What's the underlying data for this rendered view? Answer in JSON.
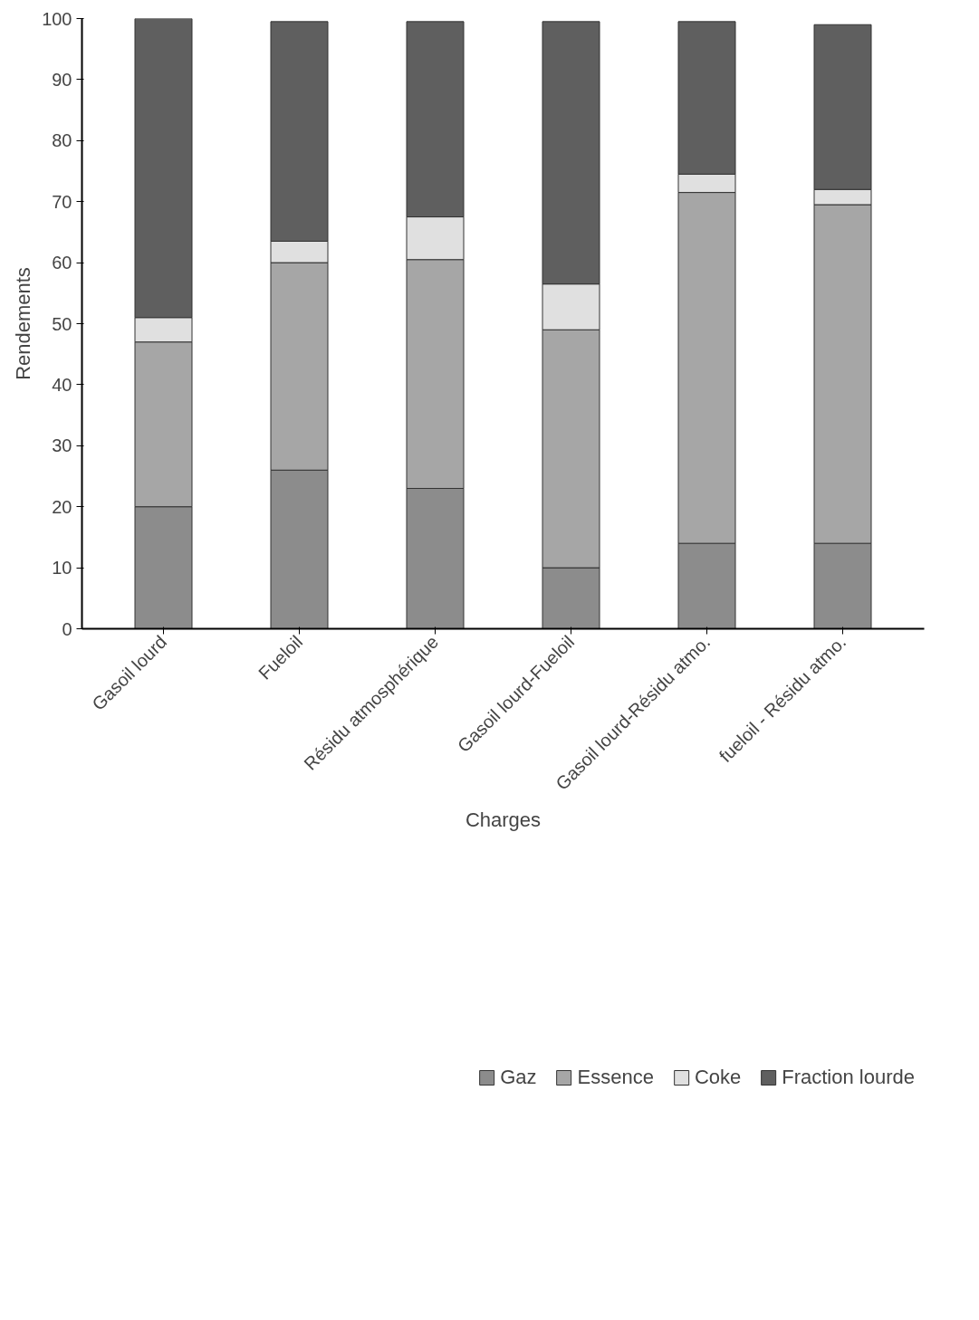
{
  "chart_data": {
    "type": "bar",
    "stacked": true,
    "xlabel": "Charges",
    "ylabel": "Rendements",
    "categories": [
      "Gasoil lourd",
      "Fueloil",
      "Résidu atmosphérique",
      "Gasoil lourd-Fueloil",
      "Gasoil lourd-Résidu atmo.",
      "fueloil - Résidu atmo."
    ],
    "series": [
      {
        "name": "Gaz",
        "color": "#8c8c8c",
        "values": [
          20,
          26,
          23,
          10,
          14,
          14
        ]
      },
      {
        "name": "Essence",
        "color": "#a6a6a6",
        "values": [
          27,
          34,
          37.5,
          39,
          57.5,
          55.5
        ]
      },
      {
        "name": "Coke",
        "color": "#e0e0e0",
        "values": [
          4,
          3.5,
          7,
          7.5,
          3,
          2.5
        ]
      },
      {
        "name": "Fraction lourde",
        "color": "#5f5f5f",
        "values": [
          49,
          36,
          32,
          43,
          25,
          27
        ]
      }
    ],
    "ylim": [
      0,
      100
    ],
    "yticks": [
      0,
      10,
      20,
      30,
      40,
      50,
      60,
      70,
      80,
      90,
      100
    ],
    "grid": false,
    "legend": "bottom"
  }
}
